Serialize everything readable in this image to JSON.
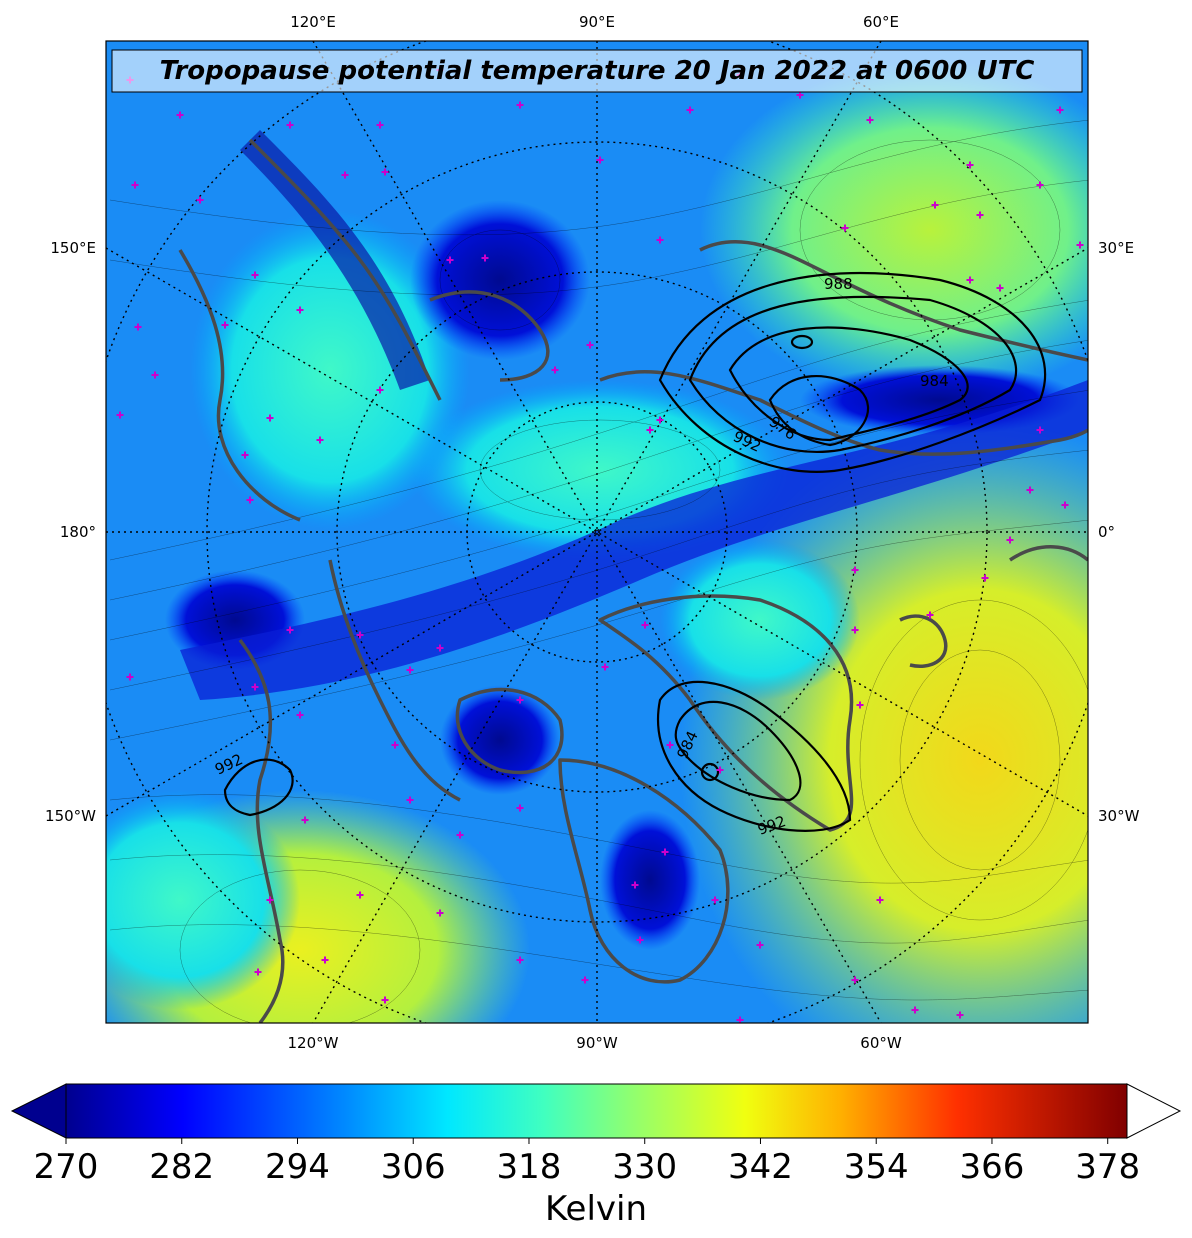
{
  "title": "Tropopause potential temperature 20 Jan 2022 at 0600 UTC",
  "longitude_labels": {
    "top": [
      "120°E",
      "90°E",
      "60°E"
    ],
    "bottom": [
      "120°W",
      "90°W",
      "60°W"
    ],
    "left": [
      "150°E",
      "180°",
      "150°W"
    ],
    "right": [
      "30°E",
      "0°",
      "30°W"
    ]
  },
  "pressure_contours": [
    "988",
    "984",
    "976",
    "992",
    "984",
    "992",
    "992"
  ],
  "colorbar": {
    "ticks": [
      "270",
      "282",
      "294",
      "306",
      "318",
      "330",
      "342",
      "354",
      "366",
      "378"
    ],
    "unit": "Kelvin",
    "range": [
      270,
      380
    ],
    "extend": "both",
    "colormap": "jet"
  },
  "colors": {
    "coastline": "#444444",
    "markers": "#cc00cc",
    "contours": "#000000"
  }
}
